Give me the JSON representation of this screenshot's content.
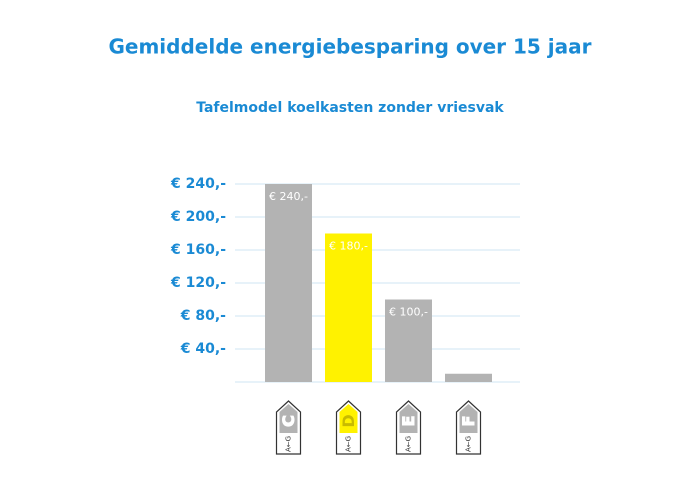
{
  "chart_data": {
    "type": "bar",
    "title": "Gemiddelde energiebesparing over 15 jaar",
    "subtitle": "Tafelmodel koelkasten zonder vriesvak",
    "categories": [
      "C",
      "D",
      "E",
      "F"
    ],
    "label_scale": "A←G",
    "values": [
      240,
      180,
      100,
      10
    ],
    "value_labels": [
      "€ 240,-",
      "€ 180,-",
      "€ 100,-",
      null
    ],
    "colors": [
      "#b3b3b3",
      "#fff200",
      "#b3b3b3",
      "#b3b3b3"
    ],
    "ylim": [
      0,
      240
    ],
    "yticks": [
      {
        "value": 40,
        "label": "€ 40,-"
      },
      {
        "value": 80,
        "label": "€ 80,-"
      },
      {
        "value": 120,
        "label": "€ 120,-"
      },
      {
        "value": 160,
        "label": "€ 160,-"
      },
      {
        "value": 200,
        "label": "€ 200,-"
      },
      {
        "value": 240,
        "label": "€ 240,-"
      }
    ],
    "grid": true
  }
}
